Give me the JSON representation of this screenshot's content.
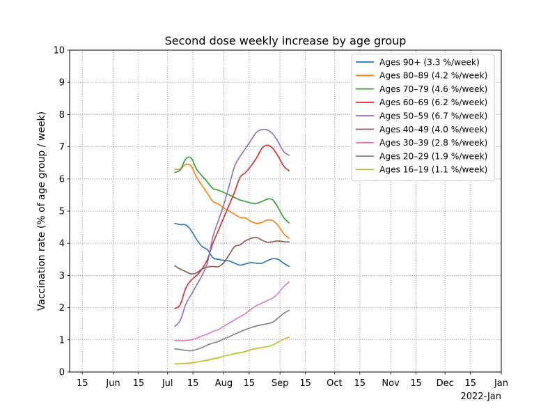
{
  "chart_data": {
    "type": "line",
    "title": "Second dose weekly increase by age group",
    "ylabel": "Vaccination rate (% of age group / week)",
    "xlabel": "",
    "x_offset_label": "2022-Jan",
    "ylim": [
      0,
      10
    ],
    "xlim": [
      "2021-05-08",
      "2022-01-01"
    ],
    "y_ticks": [
      0,
      1,
      2,
      3,
      4,
      5,
      6,
      7,
      8,
      9,
      10
    ],
    "x_ticks": [
      {
        "date": "2021-05-15",
        "label": "15"
      },
      {
        "date": "2021-06-01",
        "label": "Jun"
      },
      {
        "date": "2021-06-15",
        "label": "15"
      },
      {
        "date": "2021-07-01",
        "label": "Jul"
      },
      {
        "date": "2021-07-15",
        "label": "15"
      },
      {
        "date": "2021-08-01",
        "label": "Aug"
      },
      {
        "date": "2021-08-15",
        "label": "15"
      },
      {
        "date": "2021-09-01",
        "label": "Sep"
      },
      {
        "date": "2021-09-15",
        "label": "15"
      },
      {
        "date": "2021-10-01",
        "label": "Oct"
      },
      {
        "date": "2021-10-15",
        "label": "15"
      },
      {
        "date": "2021-11-01",
        "label": "Nov"
      },
      {
        "date": "2021-11-15",
        "label": "15"
      },
      {
        "date": "2021-12-01",
        "label": "Dec"
      },
      {
        "date": "2021-12-15",
        "label": "15"
      },
      {
        "date": "2022-01-01",
        "label": "Jan"
      }
    ],
    "grid": true,
    "legend_position": "top-right",
    "x": [
      "2021-07-05",
      "2021-07-08",
      "2021-07-11",
      "2021-07-14",
      "2021-07-17",
      "2021-07-20",
      "2021-07-23",
      "2021-07-26",
      "2021-07-29",
      "2021-08-01",
      "2021-08-04",
      "2021-08-07",
      "2021-08-10",
      "2021-08-13",
      "2021-08-16",
      "2021-08-19",
      "2021-08-22",
      "2021-08-25",
      "2021-08-28",
      "2021-08-31",
      "2021-09-03",
      "2021-09-06"
    ],
    "series": [
      {
        "name": "Ages 90+ (3.3 %/week)",
        "color": "#1f77b4",
        "values": [
          4.62,
          4.58,
          4.57,
          4.4,
          4.12,
          3.9,
          3.8,
          3.55,
          3.5,
          3.47,
          3.45,
          3.38,
          3.32,
          3.36,
          3.4,
          3.38,
          3.38,
          3.46,
          3.52,
          3.5,
          3.38,
          3.28
        ]
      },
      {
        "name": "Ages 80–89 (4.2 %/week)",
        "color": "#ff7f0e",
        "values": [
          6.3,
          6.3,
          6.45,
          6.4,
          6.05,
          5.8,
          5.55,
          5.3,
          5.22,
          5.1,
          5.0,
          4.9,
          4.8,
          4.78,
          4.68,
          4.62,
          4.65,
          4.72,
          4.7,
          4.55,
          4.3,
          4.16
        ]
      },
      {
        "name": "Ages 70–79 (4.6 %/week)",
        "color": "#2ca02c",
        "values": [
          6.2,
          6.28,
          6.62,
          6.65,
          6.3,
          6.1,
          5.9,
          5.7,
          5.65,
          5.58,
          5.5,
          5.42,
          5.34,
          5.3,
          5.25,
          5.24,
          5.3,
          5.37,
          5.35,
          5.1,
          4.8,
          4.63
        ]
      },
      {
        "name": "Ages 60–69 (6.2 %/week)",
        "color": "#d62728",
        "values": [
          1.97,
          2.1,
          2.6,
          2.85,
          3.0,
          3.2,
          3.5,
          4.0,
          4.4,
          4.8,
          5.2,
          5.6,
          6.05,
          6.2,
          6.4,
          6.65,
          6.95,
          7.05,
          6.95,
          6.7,
          6.4,
          6.25
        ]
      },
      {
        "name": "Ages 50–59 (6.7 %/week)",
        "color": "#9467bd",
        "values": [
          1.42,
          1.6,
          2.1,
          2.4,
          2.7,
          3.0,
          3.4,
          4.2,
          4.7,
          5.2,
          5.8,
          6.4,
          6.7,
          6.95,
          7.2,
          7.45,
          7.53,
          7.52,
          7.4,
          7.15,
          6.85,
          6.73
        ]
      },
      {
        "name": "Ages 40–49 (4.0 %/week)",
        "color": "#8c564b",
        "values": [
          3.3,
          3.2,
          3.12,
          3.05,
          3.08,
          3.2,
          3.26,
          3.28,
          3.27,
          3.4,
          3.65,
          3.9,
          3.95,
          4.08,
          4.15,
          4.18,
          4.1,
          4.03,
          4.05,
          4.07,
          4.05,
          4.04
        ]
      },
      {
        "name": "Ages 30–39 (2.8 %/week)",
        "color": "#e377c2",
        "values": [
          0.98,
          0.97,
          0.98,
          1.0,
          1.05,
          1.12,
          1.18,
          1.26,
          1.32,
          1.42,
          1.52,
          1.62,
          1.72,
          1.82,
          1.95,
          2.06,
          2.14,
          2.22,
          2.3,
          2.45,
          2.65,
          2.8
        ]
      },
      {
        "name": "Ages 20–29 (1.9 %/week)",
        "color": "#7f7f7f",
        "values": [
          0.72,
          0.7,
          0.67,
          0.66,
          0.7,
          0.76,
          0.84,
          0.9,
          0.95,
          1.03,
          1.1,
          1.18,
          1.25,
          1.32,
          1.38,
          1.43,
          1.47,
          1.5,
          1.55,
          1.68,
          1.82,
          1.92
        ]
      },
      {
        "name": "Ages 16–19 (1.1 %/week)",
        "color": "#bcbd22",
        "values": [
          0.25,
          0.26,
          0.27,
          0.28,
          0.31,
          0.34,
          0.37,
          0.41,
          0.44,
          0.49,
          0.53,
          0.57,
          0.6,
          0.64,
          0.69,
          0.73,
          0.76,
          0.79,
          0.84,
          0.93,
          1.02,
          1.08
        ]
      }
    ]
  }
}
